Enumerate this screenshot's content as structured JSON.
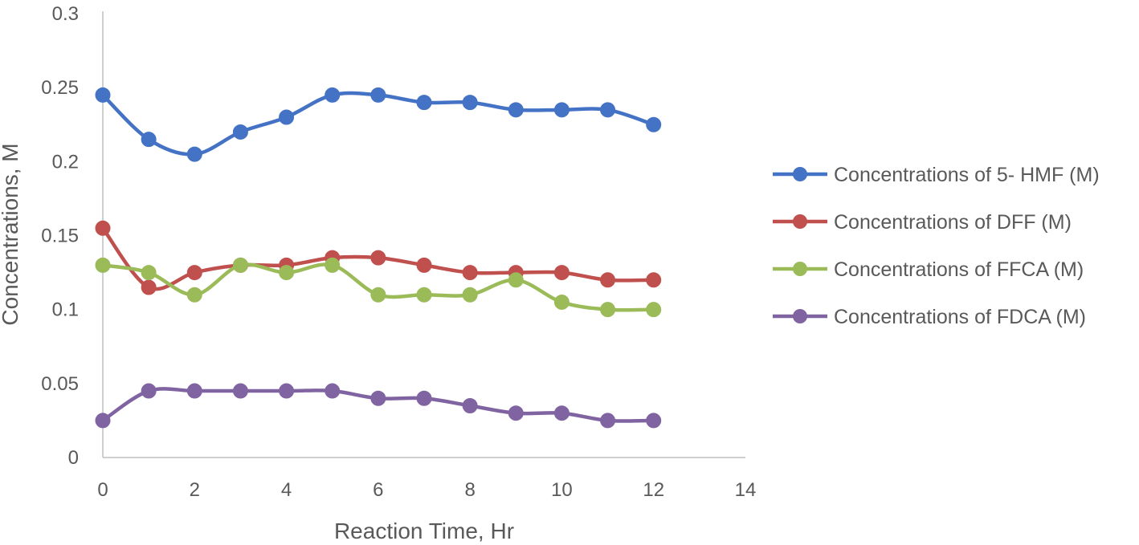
{
  "chart_data": {
    "type": "line",
    "xlabel": "Reaction Time, Hr",
    "ylabel": "Concentrations, M",
    "xlim": [
      0,
      14
    ],
    "ylim": [
      0,
      0.3
    ],
    "x_ticks": [
      "0",
      "2",
      "4",
      "6",
      "8",
      "10",
      "12",
      "14"
    ],
    "y_ticks": [
      "0",
      "0.05",
      "0.1",
      "0.15",
      "0.2",
      "0.25",
      "0.3"
    ],
    "x": [
      0,
      1,
      2,
      3,
      4,
      5,
      6,
      7,
      8,
      9,
      10,
      11,
      12
    ],
    "grid": false,
    "legend_position": "right",
    "smooth": true,
    "series": [
      {
        "name": "Concentrations of 5- HMF (M)",
        "color": "#4472C4",
        "values": [
          0.245,
          0.215,
          0.205,
          0.22,
          0.23,
          0.245,
          0.245,
          0.24,
          0.24,
          0.235,
          0.235,
          0.235,
          0.225
        ]
      },
      {
        "name": "Concentrations of DFF (M)",
        "color": "#C0504D",
        "values": [
          0.155,
          0.115,
          0.125,
          0.13,
          0.13,
          0.135,
          0.135,
          0.13,
          0.125,
          0.125,
          0.125,
          0.12,
          0.12
        ]
      },
      {
        "name": "Concentrations of FFCA (M)",
        "color": "#9BBB59",
        "values": [
          0.13,
          0.125,
          0.11,
          0.13,
          0.125,
          0.13,
          0.11,
          0.11,
          0.11,
          0.12,
          0.105,
          0.1,
          0.1
        ]
      },
      {
        "name": "Concentrations of FDCA (M)",
        "color": "#8064A2",
        "values": [
          0.025,
          0.045,
          0.045,
          0.045,
          0.045,
          0.045,
          0.04,
          0.04,
          0.035,
          0.03,
          0.03,
          0.025,
          0.025
        ]
      }
    ]
  }
}
